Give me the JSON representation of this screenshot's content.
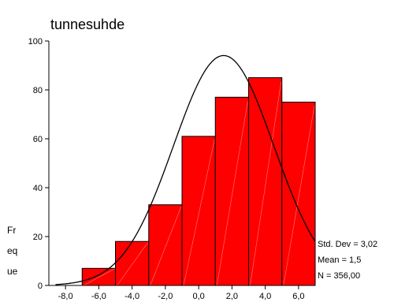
{
  "chart_data": {
    "type": "bar",
    "title": "tunnesuhde",
    "ylabel_lines": [
      "Fr",
      "eq",
      "ue"
    ],
    "ylim": [
      0,
      100
    ],
    "xlim": [
      -9,
      7
    ],
    "y_ticks": [
      "0",
      "20",
      "40",
      "60",
      "80",
      "100"
    ],
    "x_ticks": [
      "-8,0",
      "-6,0",
      "-4,0",
      "-2,0",
      "0,0",
      "2,0",
      "4,0",
      "6,0"
    ],
    "bin_width": 2,
    "series": [
      {
        "bin_centers": [
          -6,
          -4,
          -2,
          0,
          2,
          4,
          6
        ],
        "values": [
          7,
          18,
          33,
          61,
          77,
          85,
          75
        ]
      }
    ],
    "normal_curve": {
      "mean": 1.5,
      "std_dev": 3.02,
      "n": 356,
      "bin_width": 2
    },
    "stats": [
      "Std. Dev = 3,02",
      "Mean = 1,5",
      "N = 356,00"
    ],
    "colors": {
      "bar_fill": "#ff0000",
      "bar_stroke": "#000000",
      "hatch": "#ff9999",
      "curve": "#000000"
    }
  }
}
